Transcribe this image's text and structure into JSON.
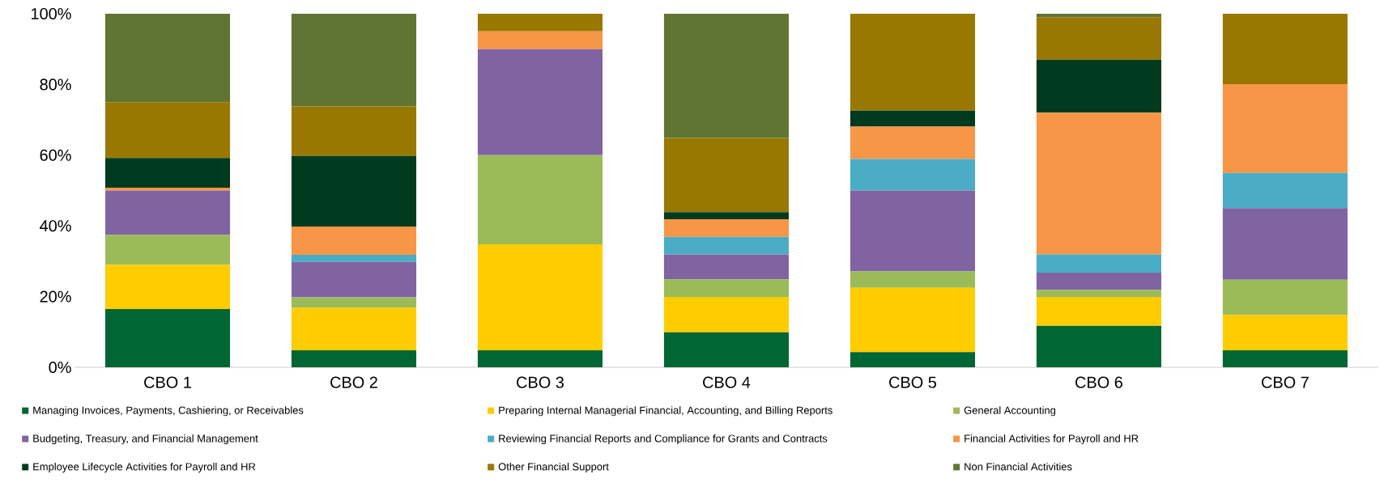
{
  "chart_data": {
    "type": "bar",
    "stacked": true,
    "categories": [
      "CBO 1",
      "CBO 2",
      "CBO 3",
      "CBO 4",
      "CBO 5",
      "CBO 6",
      "CBO 7"
    ],
    "ylim": [
      0,
      100
    ],
    "yticks": [
      {
        "value": 0,
        "label": "0%"
      },
      {
        "value": 20,
        "label": "20%"
      },
      {
        "value": 40,
        "label": "40%"
      },
      {
        "value": 60,
        "label": "60%"
      },
      {
        "value": 80,
        "label": "80%"
      },
      {
        "value": 100,
        "label": "100%"
      }
    ],
    "legend": "bottom",
    "series": [
      {
        "name": "Managing Invoices, Payments, Cashiering, or Receivables",
        "color": "#006633",
        "values": [
          16.5,
          4.8,
          4.8,
          9.9,
          4.3,
          11.7,
          4.8
        ]
      },
      {
        "name": "Preparing Internal Managerial Financial, Accounting, and Billing Reports",
        "color": "#ffcc00",
        "values": [
          12.5,
          12,
          30,
          10,
          18.2,
          8.2,
          10
        ]
      },
      {
        "name": "General Accounting",
        "color": "#9bbb59",
        "values": [
          8.5,
          3,
          25.2,
          5,
          4.6,
          2,
          10
        ]
      },
      {
        "name": "Budgeting, Treasury, and Financial Management",
        "color": "#8064a2",
        "values": [
          12.5,
          10,
          30,
          7,
          22.9,
          4.9,
          20.2
        ]
      },
      {
        "name": "Reviewing Financial Reports and Compliance for Grants and Contracts",
        "color": "#4bacc6",
        "values": [
          0,
          2,
          0,
          5,
          8.9,
          5.1,
          10
        ]
      },
      {
        "name": "Financial Activities for Payroll and HR",
        "color": "#f79646",
        "values": [
          0.8,
          8,
          5,
          5,
          9.2,
          40.1,
          25.1
        ]
      },
      {
        "name": "Employee Lifecycle Activities for Payroll and HR",
        "color": "#003b1f",
        "values": [
          8.4,
          20,
          0,
          2,
          4.5,
          15,
          0
        ]
      },
      {
        "name": "Other Financial Support",
        "color": "#987800",
        "values": [
          15.8,
          14,
          5,
          21,
          27.4,
          12,
          19.9
        ]
      },
      {
        "name": "Non Financial Activities",
        "color": "#617532",
        "values": [
          25,
          26.2,
          0,
          35.1,
          0,
          1,
          0
        ]
      }
    ]
  }
}
